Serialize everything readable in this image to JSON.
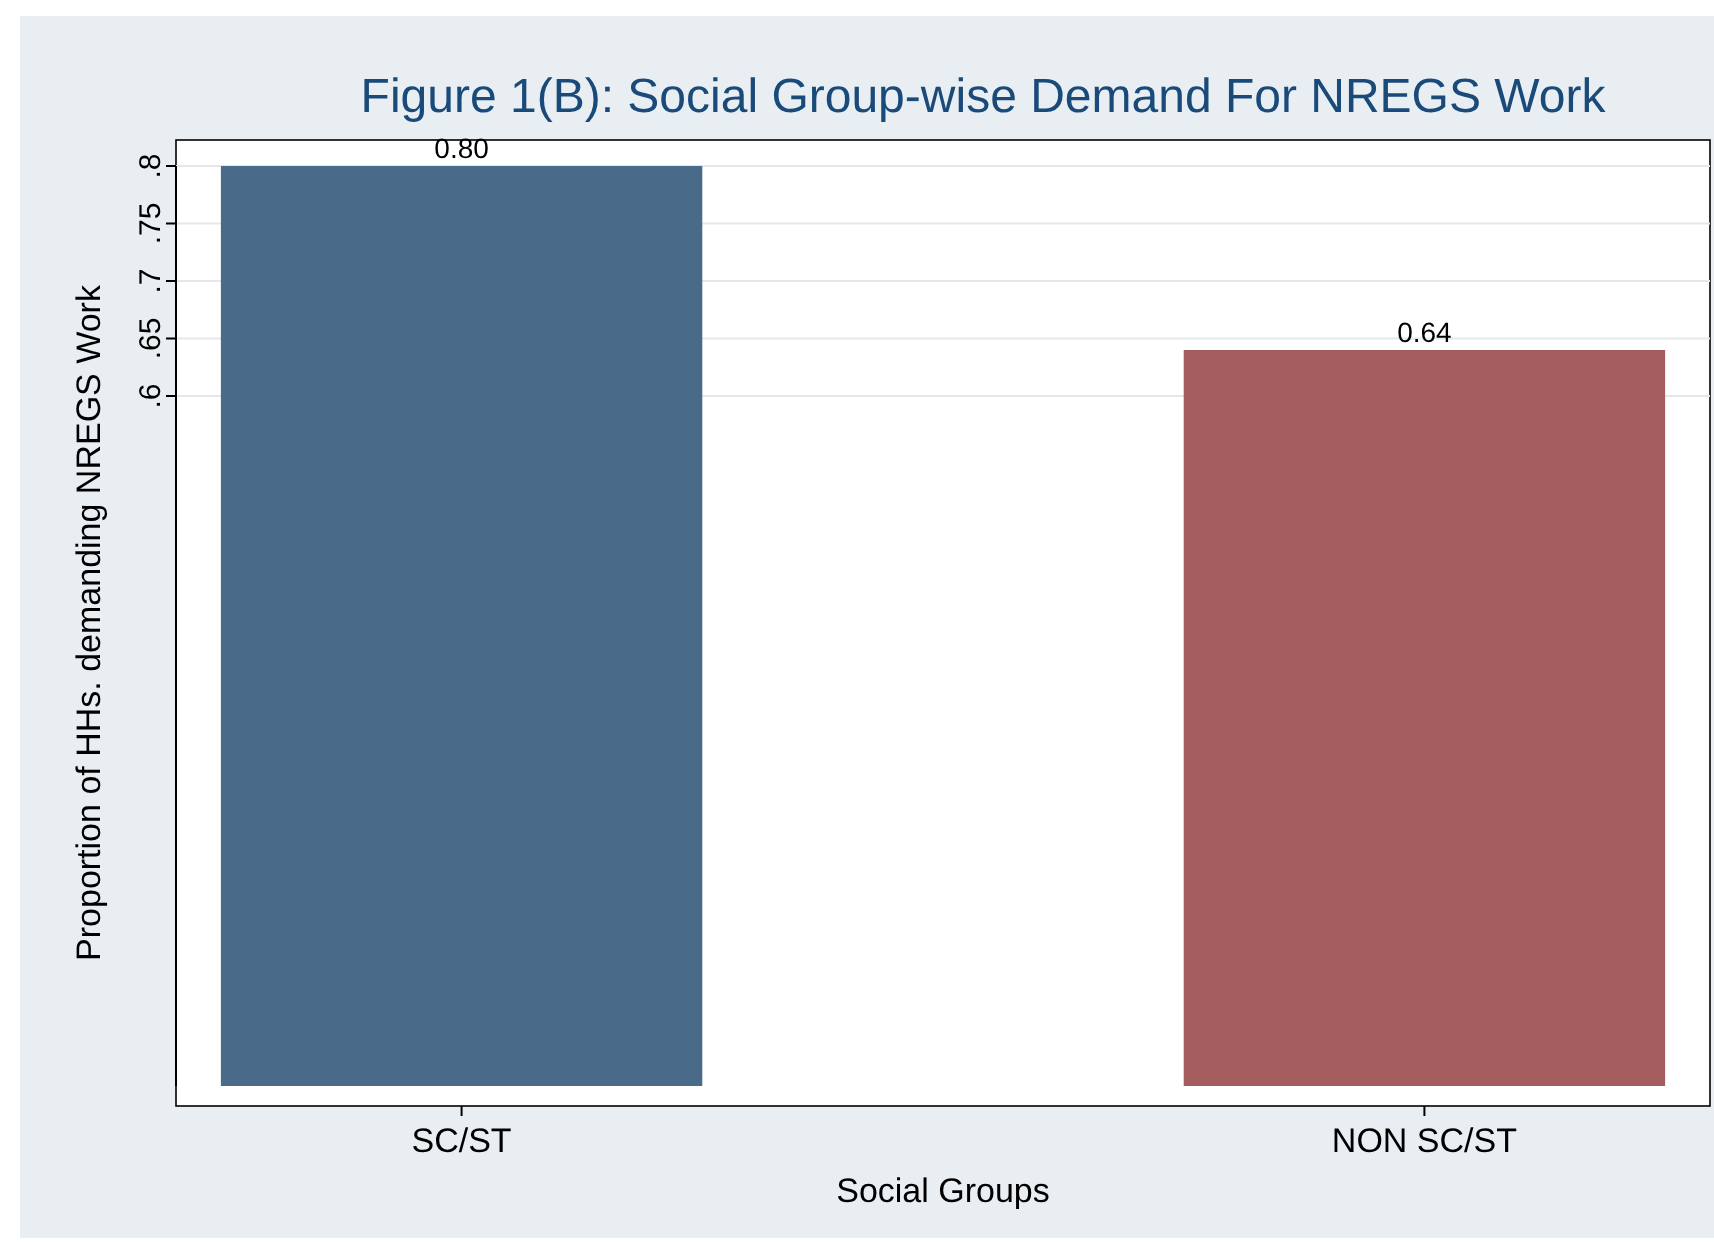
{
  "chart_data": {
    "type": "bar",
    "title": "Figure 1(B): Social Group-wise Demand For NREGS Work",
    "xlabel": "Social Groups",
    "ylabel": "Proportion of HHs. demanding NREGS Work",
    "categories": [
      "SC/ST",
      "NON SC/ST"
    ],
    "values": [
      0.8,
      0.64
    ],
    "colors": [
      "#4a6a8a",
      "#a45c5e"
    ],
    "value_labels": [
      "0.80",
      "0.64"
    ],
    "ylim": [
      0,
      0.8
    ],
    "yticks": [
      {
        "value": 0.6,
        "label": ".6"
      },
      {
        "value": 0.65,
        "label": ".65"
      },
      {
        "value": 0.7,
        "label": ".7"
      },
      {
        "value": 0.75,
        "label": ".75"
      },
      {
        "value": 0.8,
        "label": ".8"
      }
    ],
    "grid": "y"
  }
}
